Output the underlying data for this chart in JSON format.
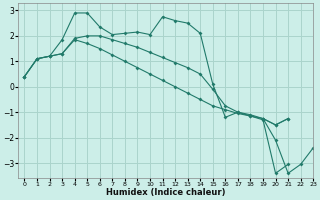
{
  "background_color": "#cceee8",
  "grid_color": "#aad4cc",
  "line_color": "#217a6a",
  "xlabel": "Humidex (Indice chaleur)",
  "xlim": [
    -0.5,
    23
  ],
  "ylim": [
    -3.6,
    3.3
  ],
  "yticks": [
    -3,
    -2,
    -1,
    0,
    1,
    2,
    3
  ],
  "xticks": [
    0,
    1,
    2,
    3,
    4,
    5,
    6,
    7,
    8,
    9,
    10,
    11,
    12,
    13,
    14,
    15,
    16,
    17,
    18,
    19,
    20,
    21,
    22,
    23
  ],
  "series": [
    {
      "x": [
        0,
        1,
        2,
        3,
        4,
        5,
        6,
        7,
        8,
        9,
        10,
        11,
        12,
        13,
        14,
        15,
        16,
        17,
        18,
        19,
        20,
        21
      ],
      "y": [
        0.4,
        1.1,
        1.2,
        1.85,
        2.9,
        2.9,
        2.35,
        2.05,
        2.1,
        2.15,
        2.05,
        2.75,
        2.6,
        2.5,
        2.1,
        0.1,
        -1.2,
        -1.0,
        -1.15,
        -1.3,
        -3.4,
        -3.05
      ]
    },
    {
      "x": [
        0,
        1,
        2,
        3,
        4,
        5,
        6,
        7,
        8,
        9,
        10,
        11,
        12,
        13,
        14,
        15,
        16,
        17,
        18,
        19,
        20,
        21
      ],
      "y": [
        0.4,
        1.1,
        1.2,
        1.3,
        1.85,
        1.7,
        1.5,
        1.25,
        1.0,
        0.75,
        0.5,
        0.25,
        0.0,
        -0.25,
        -0.5,
        -0.75,
        -0.9,
        -1.05,
        -1.15,
        -1.25,
        -1.5,
        -1.25
      ]
    },
    {
      "x": [
        0,
        1,
        2,
        3,
        4,
        5,
        6,
        7,
        8,
        9,
        10,
        11,
        12,
        13,
        14,
        15,
        16,
        17,
        18,
        19,
        20,
        21
      ],
      "y": [
        0.4,
        1.1,
        1.2,
        1.3,
        1.9,
        2.0,
        2.0,
        1.85,
        1.7,
        1.55,
        1.35,
        1.15,
        0.95,
        0.75,
        0.5,
        -0.1,
        -0.75,
        -1.0,
        -1.1,
        -1.25,
        -1.5,
        -1.25
      ]
    },
    {
      "x": [
        19,
        20,
        21,
        22,
        23
      ],
      "y": [
        -1.25,
        -2.1,
        -3.4,
        -3.05,
        -2.4
      ]
    }
  ]
}
